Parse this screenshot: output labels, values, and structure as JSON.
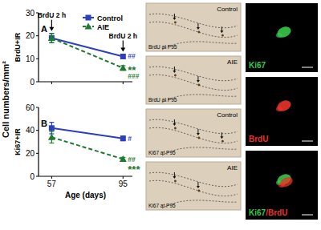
{
  "chart_data": [
    {
      "type": "line",
      "title": "A",
      "y_label": "BrdU+IR",
      "x": [
        57,
        95
      ],
      "xlim": [
        50,
        100
      ],
      "xticks": [
        57,
        95
      ],
      "ylim": [
        0,
        30
      ],
      "yticks": [
        0,
        10,
        20,
        30
      ],
      "tick_labels": "y",
      "legend": "upper right",
      "series": [
        {
          "name": "Control",
          "color": "#2b3fbf",
          "marker": "square",
          "line_style": "solid",
          "values": [
            19,
            11
          ],
          "errors": [
            2,
            1
          ]
        },
        {
          "name": "AIE",
          "color": "#1e7a2e",
          "marker": "triangle",
          "line_style": "dashed",
          "values": [
            19,
            6
          ],
          "errors": [
            2,
            1
          ]
        }
      ],
      "annotations": [
        {
          "text": "BrdU 2 h",
          "x": 57
        },
        {
          "text": "BrdU 2 h",
          "x": 95
        },
        {
          "text": "##",
          "series": 0,
          "index": 1
        },
        {
          "text": "**",
          "series": 1,
          "index": 1
        },
        {
          "text": "###",
          "series": 1,
          "index": 1
        }
      ]
    },
    {
      "type": "line",
      "title": "B",
      "y_label": "Ki67+IR",
      "x_label": "Age (days)",
      "x": [
        57,
        95
      ],
      "xlim": [
        50,
        100
      ],
      "xticks": [
        57,
        95
      ],
      "ylim": [
        0,
        60
      ],
      "yticks": [
        0,
        20,
        40,
        60
      ],
      "series": [
        {
          "name": "Control",
          "color": "#2b3fbf",
          "marker": "square",
          "line_style": "solid",
          "values": [
            42,
            33
          ],
          "errors": [
            5,
            2
          ]
        },
        {
          "name": "AIE",
          "color": "#1e7a2e",
          "marker": "triangle",
          "line_style": "dashed",
          "values": [
            34,
            15
          ],
          "errors": [
            5,
            1.5
          ]
        }
      ],
      "annotations": [
        {
          "text": "#",
          "series": 0,
          "index": 1
        },
        {
          "text": "##",
          "series": 1,
          "index": 1
        },
        {
          "text": "***",
          "series": 1,
          "index": 1
        }
      ]
    }
  ],
  "figure": {
    "y_label": "Cell numbers/mm²",
    "micrographs": [
      {
        "label": "Control",
        "stain": "BrdU at P95"
      },
      {
        "label": "AIE",
        "stain": "BrdU at P95"
      },
      {
        "label": "Control",
        "stain": "Ki67 at P95"
      },
      {
        "label": "AIE",
        "stain": "Ki67 at P95"
      }
    ],
    "fluorescence": [
      {
        "labels": [
          {
            "text": "Ki67",
            "color": "#35c94a"
          }
        ]
      },
      {
        "labels": [
          {
            "text": "BrdU",
            "color": "#e8332a"
          }
        ]
      },
      {
        "labels": [
          {
            "text": "Ki67",
            "color": "#35c94a"
          },
          {
            "text": "/BrdU",
            "color": "#e8332a"
          }
        ]
      }
    ]
  }
}
